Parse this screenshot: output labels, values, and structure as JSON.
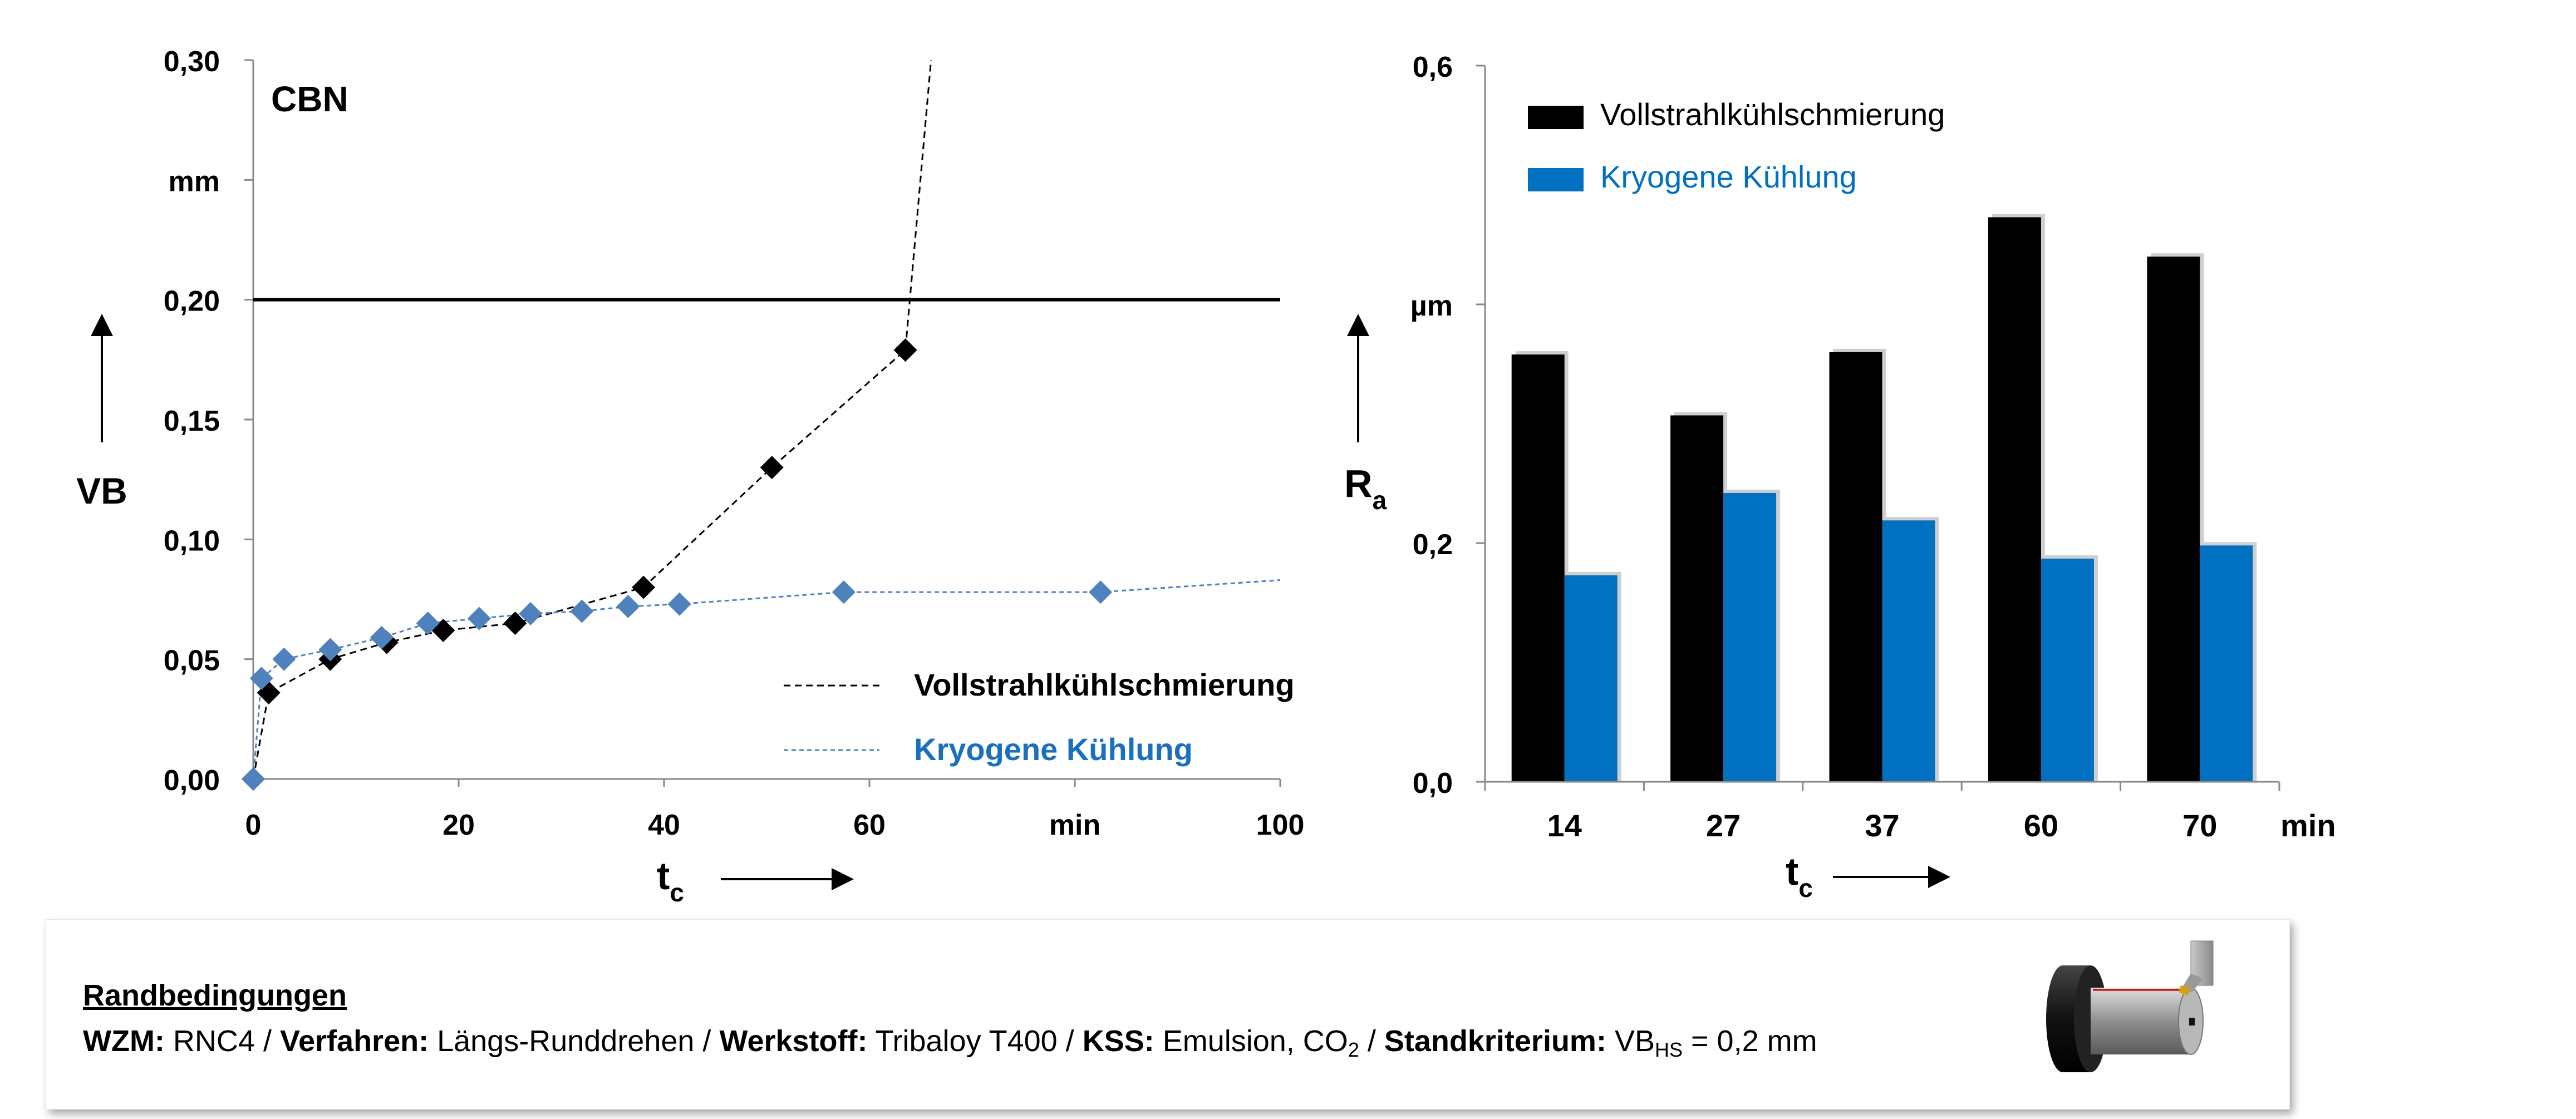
{
  "chart_data": [
    {
      "type": "line",
      "title": "CBN",
      "xlabel": "t",
      "xlabel_sub": "c",
      "ylabel": "VB",
      "x_unit": "min",
      "y_unit": "mm",
      "xlim": [
        0,
        100
      ],
      "ylim": [
        0,
        0.3
      ],
      "x_ticks": [
        "0",
        "20",
        "40",
        "60",
        "min",
        "100"
      ],
      "y_ticks": [
        "0,00",
        "0,05",
        "0,10",
        "0,15",
        "0,20",
        "mm",
        "0,30"
      ],
      "threshold": 0.2,
      "legend": [
        "Vollstrahlkühlschmierung",
        "Kryogene Kühlung"
      ],
      "legend_position": "bottom-right",
      "series": [
        {
          "name": "Vollstrahlkühlschmierung",
          "color": "#000000",
          "marker": "diamond",
          "points": [
            [
              0,
              0.0
            ],
            [
              1.5,
              0.036
            ],
            [
              7.5,
              0.05
            ],
            [
              13,
              0.057
            ],
            [
              18.5,
              0.062
            ],
            [
              25.5,
              0.065
            ],
            [
              38,
              0.08
            ],
            [
              50.5,
              0.13
            ],
            [
              63.5,
              0.179
            ]
          ],
          "extension": [
            [
              63.5,
              0.179
            ],
            [
              66,
              0.3
            ]
          ]
        },
        {
          "name": "Kryogene Kühlung",
          "color": "#4f81bd",
          "marker": "diamond",
          "points": [
            [
              0,
              0.0
            ],
            [
              0.8,
              0.042
            ],
            [
              3,
              0.05
            ],
            [
              7.5,
              0.054
            ],
            [
              12.5,
              0.059
            ],
            [
              17,
              0.065
            ],
            [
              22,
              0.067
            ],
            [
              27,
              0.069
            ],
            [
              32,
              0.07
            ],
            [
              36.5,
              0.072
            ],
            [
              41.5,
              0.073
            ],
            [
              57.5,
              0.078
            ],
            [
              82.5,
              0.078
            ]
          ],
          "extension": [
            [
              82.5,
              0.078
            ],
            [
              100,
              0.083
            ]
          ]
        }
      ]
    },
    {
      "type": "bar",
      "xlabel": "t",
      "xlabel_sub": "c",
      "ylabel": "R",
      "ylabel_sub": "a",
      "x_unit": "min",
      "y_unit": "µm",
      "categories": [
        "14",
        "27",
        "37",
        "60",
        "70"
      ],
      "ylim": [
        0,
        0.6
      ],
      "y_ticks": [
        "0,0",
        "0,2",
        "µm",
        "0,6"
      ],
      "legend_position": "top-left",
      "series": [
        {
          "name": "Vollstrahlkühlschmierung",
          "color": "#000000",
          "values": [
            0.358,
            0.307,
            0.36,
            0.473,
            0.44
          ]
        },
        {
          "name": "Kryogene Kühlung",
          "color": "#0070c0",
          "values": [
            0.173,
            0.242,
            0.219,
            0.187,
            0.198
          ]
        }
      ]
    }
  ],
  "conditions": {
    "title": "Randbedingungen",
    "wzm_label": "WZM:",
    "wzm_value": " RNC4 / ",
    "verfahren_label": "Verfahren:",
    "verfahren_value": " Längs-Runddrehen / ",
    "werkstoff_label": "Werkstoff:",
    "werkstoff_value": " Tribaloy T400 / ",
    "kss_label": "KSS:",
    "kss_value": " Emulsion, CO",
    "kss_sub": "2",
    "sep": " / ",
    "standkriterium_label": "Standkriterium:",
    "vb_prefix": "  VB",
    "vb_sub": "HS",
    "vb_value": " = 0,2 mm",
    "illustration": "turning-tool-workpiece-icon"
  }
}
